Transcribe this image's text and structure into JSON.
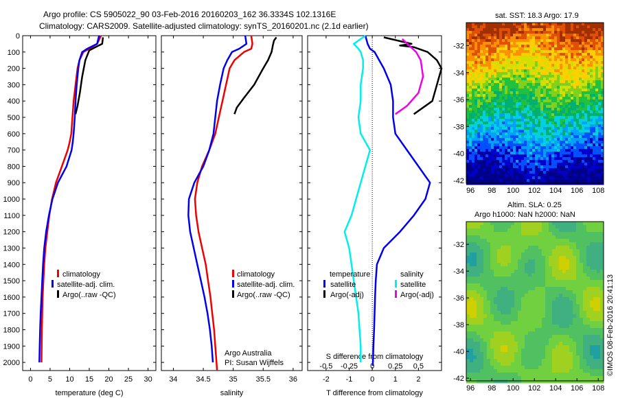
{
  "header": {
    "line1": "Argo profile: CS 5905022_90 03-Feb-2016 20160203_162 36.3334S 102.1316E",
    "line2": "Climatology: CARS2009. Satellite-adjusted climatology: synTS_20160201.nc (2.1d earlier)"
  },
  "colors": {
    "climatology": "#ee0000",
    "satellite": "#0000ee",
    "argo": "#000000",
    "sat_s": "#00eeee",
    "argo_s": "#ee00ee"
  },
  "depth_ticks": [
    "0",
    "100",
    "200",
    "300",
    "400",
    "500",
    "600",
    "700",
    "800",
    "900",
    "1000",
    "1100",
    "1200",
    "1300",
    "1400",
    "1500",
    "1600",
    "1700",
    "1800",
    "1900",
    "2000"
  ],
  "legend": {
    "climatology": "climatology",
    "satellite": "satellite-adj. clim.",
    "argo": "Argo(..raw -QC)"
  },
  "diff_legend": {
    "temperature": "temperature",
    "salinity": "salinity",
    "satellite_t": "satellite",
    "argo_t": "Argo(-adj)",
    "satellite_s": "satellite",
    "argo_s": "Argo(-adj)"
  },
  "credit": {
    "line1": "Argo Australia",
    "line2": "PI: Susan Wijffels"
  },
  "maps": {
    "sst_title": "sat. SST: 18.3 Argo: 17.9",
    "sla_title1": "Altim. SLA: 0.25",
    "sla_title2": "Argo h1000: NaN h2000: NaN",
    "xticks": [
      "96",
      "98",
      "100",
      "102",
      "104",
      "106",
      "108"
    ],
    "yticks": [
      "-32",
      "-34",
      "-36",
      "-38",
      "-40",
      "-42"
    ],
    "copyright": "©IMOS 08-Feb-2016 20:41:13"
  },
  "chart_data": [
    {
      "type": "line",
      "xlabel": "temperature (deg C)",
      "ylabel": "",
      "xlim": [
        -2,
        32
      ],
      "ylim": [
        2050,
        0
      ],
      "xticks": [
        "0",
        "5",
        "10",
        "15",
        "20",
        "25",
        "30"
      ],
      "series": [
        {
          "name": "climatology",
          "color": "#ee0000",
          "x": [
            18.0,
            17.0,
            15.0,
            13.5,
            12.5,
            12.0,
            11.5,
            11.0,
            10.7,
            10.4,
            10.0,
            9.5,
            8.0,
            6.5,
            5.5,
            4.8,
            4.3,
            3.8,
            3.5,
            3.3,
            3.1,
            3.0,
            2.9,
            2.85,
            2.8
          ],
          "y": [
            0,
            50,
            80,
            100,
            150,
            200,
            300,
            400,
            500,
            600,
            650,
            700,
            800,
            900,
            1000,
            1100,
            1200,
            1300,
            1400,
            1500,
            1600,
            1700,
            1800,
            1900,
            2000
          ]
        },
        {
          "name": "satellite-adj. clim.",
          "color": "#0000ee",
          "x": [
            17.5,
            17.0,
            14.5,
            13.2,
            12.5,
            12.2,
            11.8,
            11.5,
            11.3,
            11.0,
            10.8,
            10.5,
            9.2,
            7.0,
            5.6,
            4.7,
            4.0,
            3.5,
            3.2,
            3.0,
            2.8,
            2.6,
            2.45,
            2.35,
            2.25
          ],
          "y": [
            0,
            50,
            80,
            100,
            150,
            200,
            300,
            400,
            500,
            600,
            650,
            700,
            800,
            900,
            1000,
            1100,
            1200,
            1300,
            1400,
            1500,
            1600,
            1700,
            1800,
            1900,
            2000
          ]
        },
        {
          "name": "Argo(..raw -QC)",
          "color": "#000000",
          "x": [
            18.5,
            18.4,
            18.3,
            17.0,
            15.0,
            14.0,
            13.2,
            12.6,
            12.0,
            11.5
          ],
          "y": [
            10,
            30,
            50,
            65,
            90,
            150,
            250,
            350,
            430,
            480
          ]
        }
      ]
    },
    {
      "type": "line",
      "xlabel": "salinity",
      "ylabel": "",
      "xlim": [
        33.8,
        36.15
      ],
      "ylim": [
        2050,
        0
      ],
      "xticks": [
        "34",
        "34.5",
        "35",
        "35.5",
        "36"
      ],
      "series": [
        {
          "name": "climatology",
          "color": "#ee0000",
          "x": [
            35.3,
            35.32,
            35.3,
            35.18,
            35.02,
            34.94,
            34.88,
            34.82,
            34.76,
            34.7,
            34.6,
            34.48,
            34.4,
            34.36,
            34.38,
            34.42,
            34.48,
            34.54,
            34.58,
            34.62,
            34.65,
            34.68,
            34.7,
            34.72,
            34.73
          ],
          "y": [
            0,
            50,
            80,
            100,
            150,
            200,
            300,
            400,
            500,
            600,
            700,
            800,
            900,
            1000,
            1100,
            1200,
            1300,
            1400,
            1500,
            1600,
            1700,
            1800,
            1900,
            2000,
            2050
          ]
        },
        {
          "name": "satellite-adj. clim.",
          "color": "#0000ee",
          "x": [
            35.2,
            35.22,
            35.1,
            34.98,
            34.9,
            34.84,
            34.78,
            34.73,
            34.7,
            34.67,
            34.6,
            34.5,
            34.35,
            34.26,
            34.25,
            34.28,
            34.34,
            34.4,
            34.46,
            34.52,
            34.57,
            34.61,
            34.64,
            34.66
          ],
          "y": [
            0,
            50,
            80,
            100,
            150,
            200,
            300,
            400,
            500,
            600,
            700,
            800,
            900,
            1000,
            1100,
            1200,
            1300,
            1400,
            1500,
            1600,
            1700,
            1800,
            1900,
            2000
          ]
        },
        {
          "name": "Argo(..raw -QC)",
          "color": "#000000",
          "x": [
            35.72,
            35.68,
            35.66,
            35.64,
            35.58,
            35.5,
            35.35,
            35.18,
            35.06,
            35.02
          ],
          "y": [
            10,
            30,
            60,
            100,
            150,
            200,
            300,
            380,
            440,
            480
          ]
        }
      ]
    },
    {
      "type": "line",
      "xlabel": "T difference from climatology",
      "ylabel": "",
      "secondary_xlabel": "S difference from climatology",
      "xlim": [
        -2.8,
        3.0
      ],
      "ylim": [
        2050,
        0
      ],
      "xticks": [
        "-2",
        "-1",
        "0",
        "1",
        "2"
      ],
      "secondary_xticks": [
        {
          "label": "-0.5",
          "t": -2.0
        },
        {
          "label": "-0.25",
          "t": -1.0
        },
        {
          "label": "0",
          "t": 0.0
        },
        {
          "label": "0.25",
          "t": 1.0
        },
        {
          "label": "0.5",
          "t": 2.0
        }
      ],
      "series": [
        {
          "name": "satellite (temperature)",
          "color": "#0000ee",
          "x": [
            -0.3,
            -0.2,
            -0.1,
            0.1,
            0.3,
            0.5,
            0.8,
            0.9,
            0.9,
            1.0,
            1.5,
            2.0,
            2.5,
            2.3,
            1.8,
            1.2,
            0.5,
            0.2,
            0.15,
            0.12,
            0.1,
            0.08,
            0.05,
            0.03,
            0.02
          ],
          "y": [
            0,
            50,
            80,
            100,
            150,
            200,
            300,
            400,
            500,
            600,
            700,
            800,
            900,
            1000,
            1100,
            1200,
            1300,
            1400,
            1500,
            1600,
            1700,
            1800,
            1900,
            2000,
            2020
          ]
        },
        {
          "name": "Argo(-adj) (temperature)",
          "color": "#000000",
          "x": [
            0.5,
            1.1,
            1.7,
            1.2,
            1.8,
            2.4,
            2.8,
            3.0,
            2.8,
            2.6,
            1.8
          ],
          "y": [
            10,
            30,
            50,
            60,
            70,
            100,
            150,
            200,
            300,
            400,
            480
          ]
        },
        {
          "name": "satellite (salinity)",
          "color": "#00eeee",
          "x": [
            -0.3,
            -0.8,
            -0.6,
            -0.5,
            -0.4,
            -0.4,
            -0.5,
            -0.5,
            -0.6,
            -0.5,
            -0.3,
            -0.1,
            -0.3,
            -0.5,
            -0.7,
            -0.9,
            -1.2,
            -1.0,
            -0.9,
            -0.8,
            -0.7,
            -0.6,
            -0.55,
            -0.5,
            -0.5
          ],
          "y": [
            0,
            50,
            80,
            100,
            150,
            200,
            300,
            400,
            500,
            600,
            650,
            700,
            800,
            900,
            1000,
            1100,
            1200,
            1300,
            1400,
            1500,
            1600,
            1700,
            1800,
            1900,
            2000
          ]
        },
        {
          "name": "Argo(-adj) (salinity)",
          "color": "#ee00ee",
          "x": [
            1.3,
            1.6,
            1.9,
            2.1,
            2.2,
            2.0,
            1.5,
            1.0
          ],
          "y": [
            20,
            60,
            100,
            150,
            250,
            350,
            430,
            480
          ]
        }
      ]
    }
  ]
}
